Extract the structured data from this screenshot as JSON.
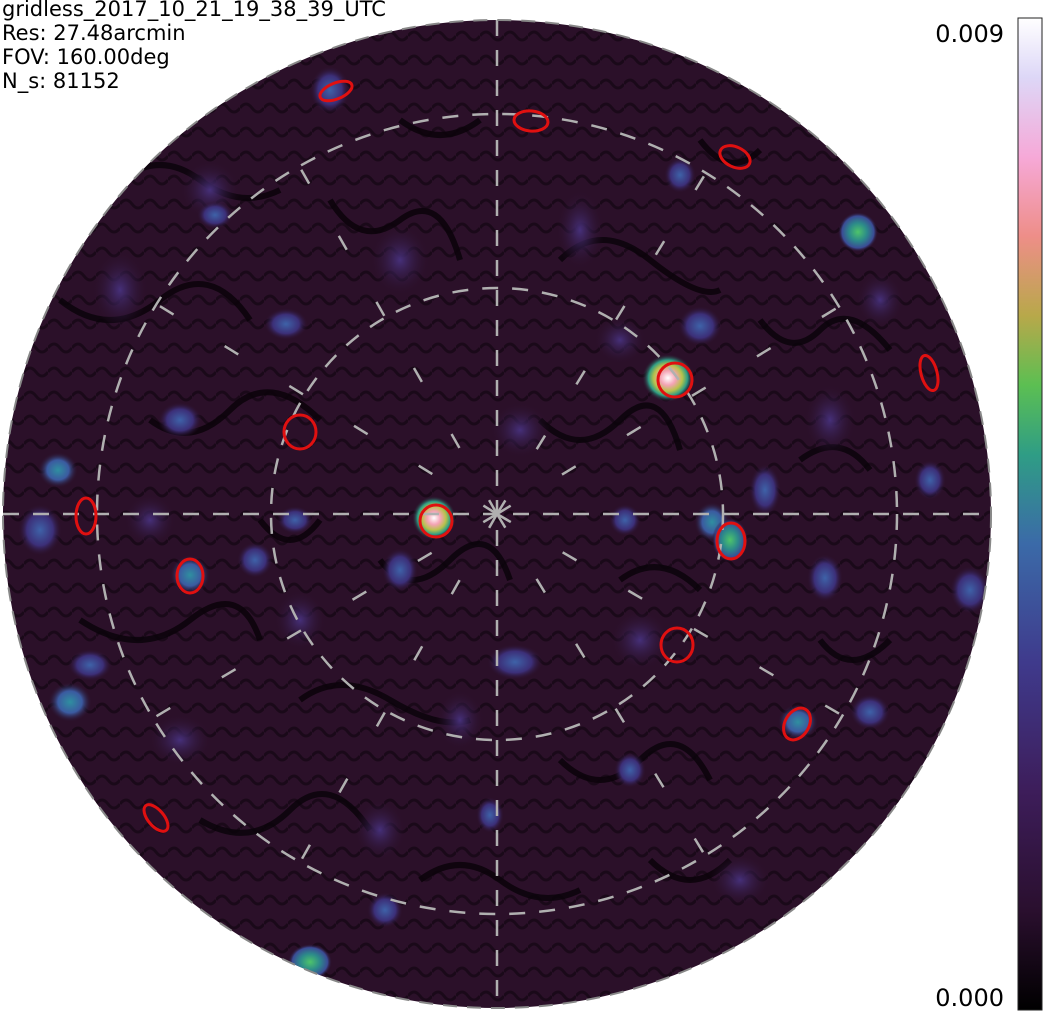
{
  "header": {
    "title": "gridless_2017_10_21_19_38_39_UTC",
    "res": "Res: 27.48arcmin",
    "fov": "FOV: 160.00deg",
    "ns": "N_s: 81152"
  },
  "colorbar": {
    "max_label": "0.009",
    "min_label": "0.000",
    "colormap": [
      "#000000",
      "#2a0f2e",
      "#3d1d5a",
      "#3f3a8c",
      "#3b6aa8",
      "#2f9d85",
      "#5cbf52",
      "#b8a84a",
      "#ee8e88",
      "#f6a9d8",
      "#ddd7f7",
      "#ffffff"
    ]
  },
  "image": {
    "background": "#2b1029",
    "grid_color": "#b0b0b0",
    "marker_color": "#e01010"
  }
}
